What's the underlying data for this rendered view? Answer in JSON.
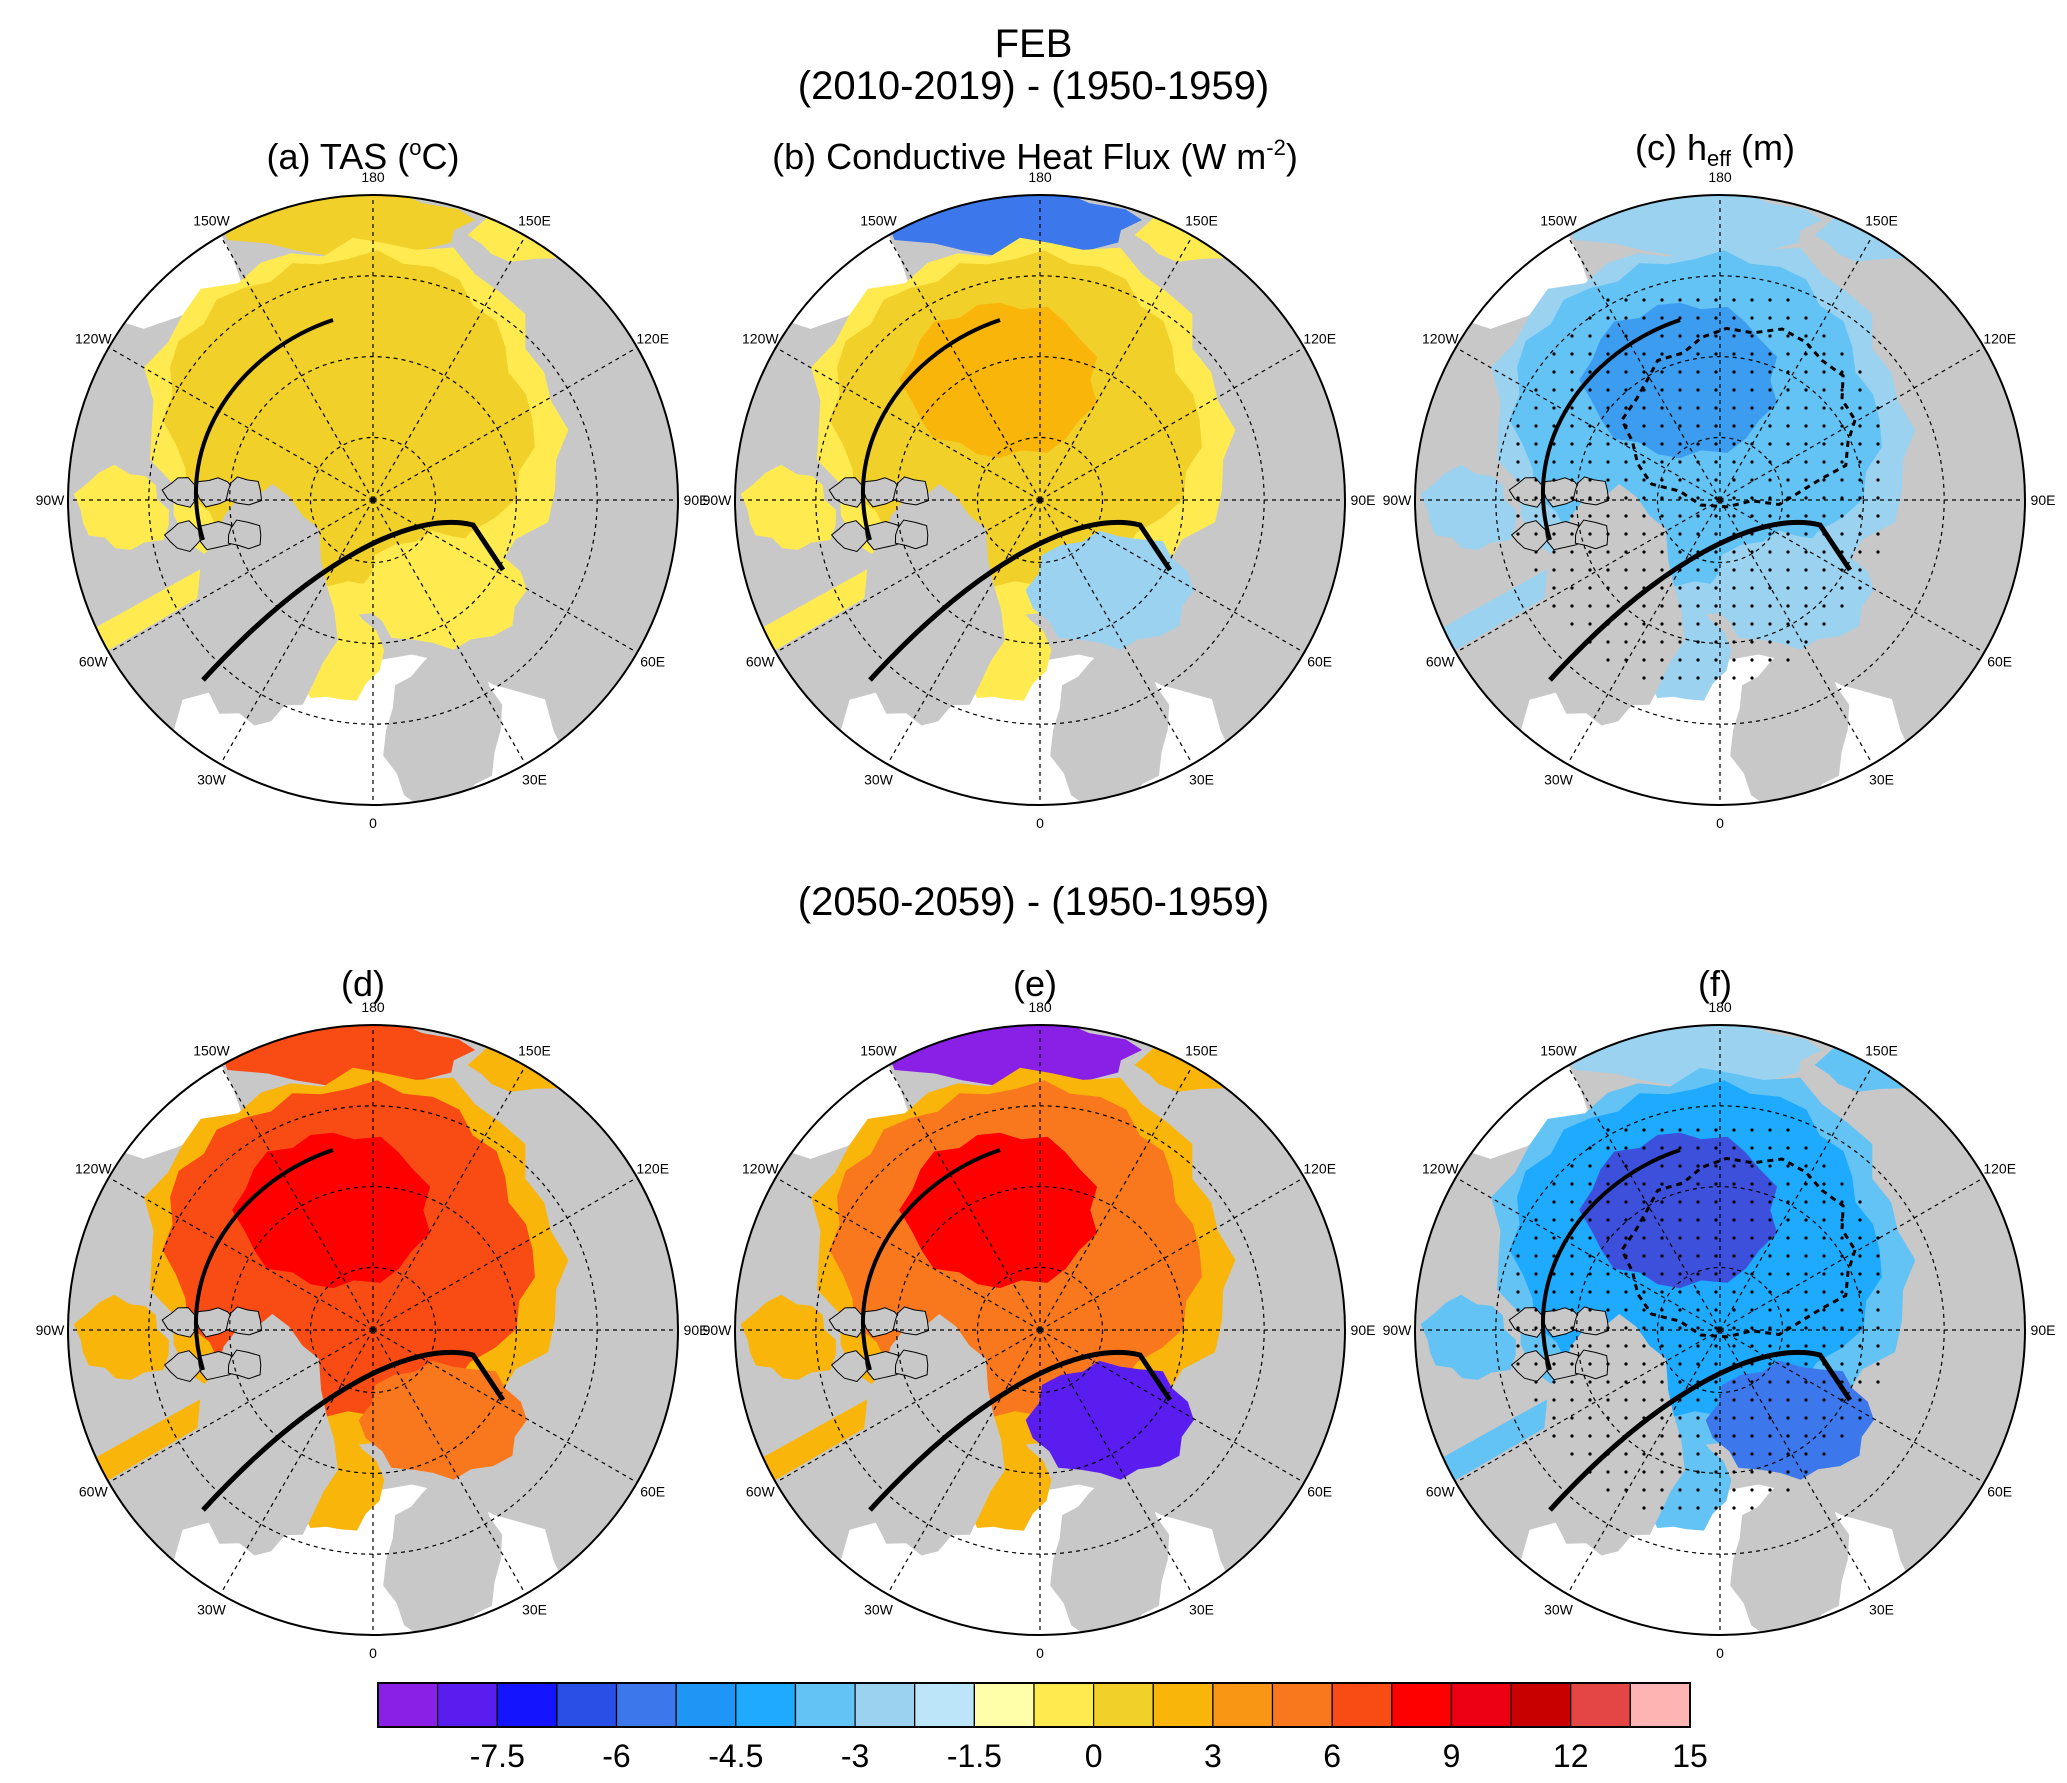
{
  "figure": {
    "month": "FEB",
    "period_top": "(2010-2019) - (1950-1959)",
    "period_bottom": "(2050-2059) - (1950-1959)"
  },
  "panels": [
    {
      "id": "a",
      "title_pre": "(a) TAS (",
      "title_sup": "o",
      "title_post": "C)",
      "title_sub": ""
    },
    {
      "id": "b",
      "title_pre": "(b) Conductive Heat Flux (W m",
      "title_sup": "-2",
      "title_post": ")",
      "title_sub": ""
    },
    {
      "id": "c",
      "title_pre": "(c) h",
      "title_sub": "eff",
      "title_post": " (m)",
      "title_sup": ""
    },
    {
      "id": "d",
      "title_pre": "(d)",
      "title_sup": "",
      "title_post": "",
      "title_sub": ""
    },
    {
      "id": "e",
      "title_pre": "(e)",
      "title_sup": "",
      "title_post": "",
      "title_sub": ""
    },
    {
      "id": "f",
      "title_pre": "(f)",
      "title_sup": "",
      "title_post": "",
      "title_sub": ""
    }
  ],
  "map": {
    "longitude_labels": [
      "180",
      "150E",
      "120E",
      "90E",
      "60E",
      "30E",
      "0",
      "30W",
      "60W",
      "90W",
      "120W",
      "150W"
    ],
    "colors": {
      "land": "#c8c8c8",
      "ocean_nodata": "#ffffff",
      "grid": "#000000"
    }
  },
  "colorbar": {
    "colors": [
      "#8a1fe6",
      "#5a1df0",
      "#1414ff",
      "#2850e6",
      "#3c78ec",
      "#1e96f5",
      "#1eaaff",
      "#64c3f5",
      "#9ad2f0",
      "#bde5fa",
      "#ffffaa",
      "#ffeb50",
      "#f2d02a",
      "#f9b50a",
      "#f99614",
      "#f9781e",
      "#f94b14",
      "#ff0000",
      "#ee0014",
      "#c80000",
      "#e44646",
      "#ffb4b4"
    ],
    "ticks": [
      "-7.5",
      "-6",
      "-4.5",
      "-3",
      "-1.5",
      "0",
      "3",
      "6",
      "9",
      "12",
      "15"
    ]
  }
}
